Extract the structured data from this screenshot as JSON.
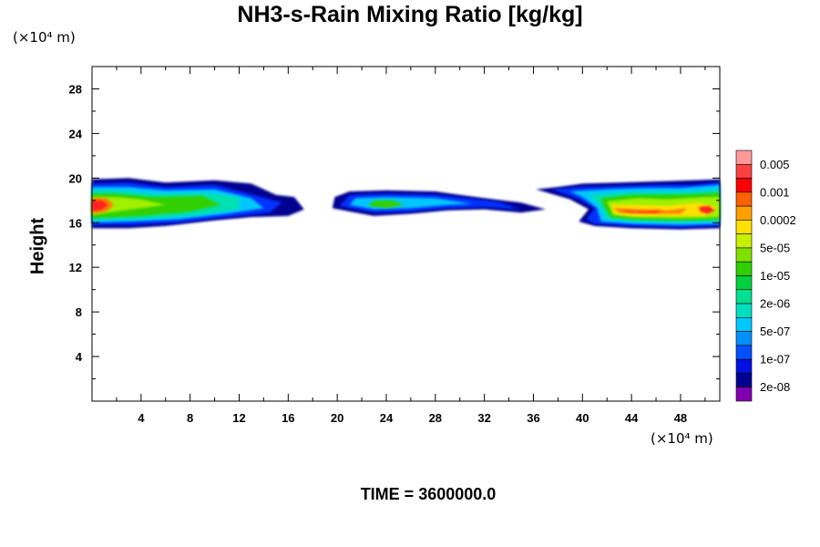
{
  "chart_data": {
    "type": "heatmap",
    "title": "NH3-s-Rain Mixing Ratio [kg/kg]",
    "ylabel": "Height",
    "xlabel": "",
    "x_unit": "(×10⁴ m)",
    "y_unit": "(×10⁴ m)",
    "x_ticks": [
      4,
      8,
      12,
      16,
      20,
      24,
      28,
      32,
      36,
      40,
      44,
      48
    ],
    "y_ticks": [
      4,
      8,
      12,
      16,
      20,
      24,
      28
    ],
    "xlim": [
      0,
      51.2
    ],
    "ylim": [
      0,
      30
    ],
    "colorbar": {
      "labels": [
        "0.005",
        "0.001",
        "0.0002",
        "5e-05",
        "1e-05",
        "2e-06",
        "5e-07",
        "1e-07",
        "2e-08"
      ],
      "colors": [
        "#ff9999",
        "#ff4040",
        "#ff0000",
        "#ff6000",
        "#ffa000",
        "#ffe000",
        "#c8f000",
        "#80e000",
        "#30d000",
        "#00d040",
        "#00e090",
        "#00e0c0",
        "#00c8ff",
        "#0090ff",
        "#0050ff",
        "#0010e0",
        "#000090",
        "#8000b0"
      ]
    },
    "cloud_regions": [
      {
        "name": "left-band",
        "x": [
          0,
          17
        ],
        "y": [
          15.5,
          20
        ]
      },
      {
        "name": "center-band",
        "x": [
          20,
          37
        ],
        "y": [
          16.3,
          19
        ]
      },
      {
        "name": "right-band",
        "x": [
          36,
          51.2
        ],
        "y": [
          15.5,
          20
        ]
      }
    ]
  },
  "footer": {
    "time_label": "TIME = 3600000.0"
  }
}
